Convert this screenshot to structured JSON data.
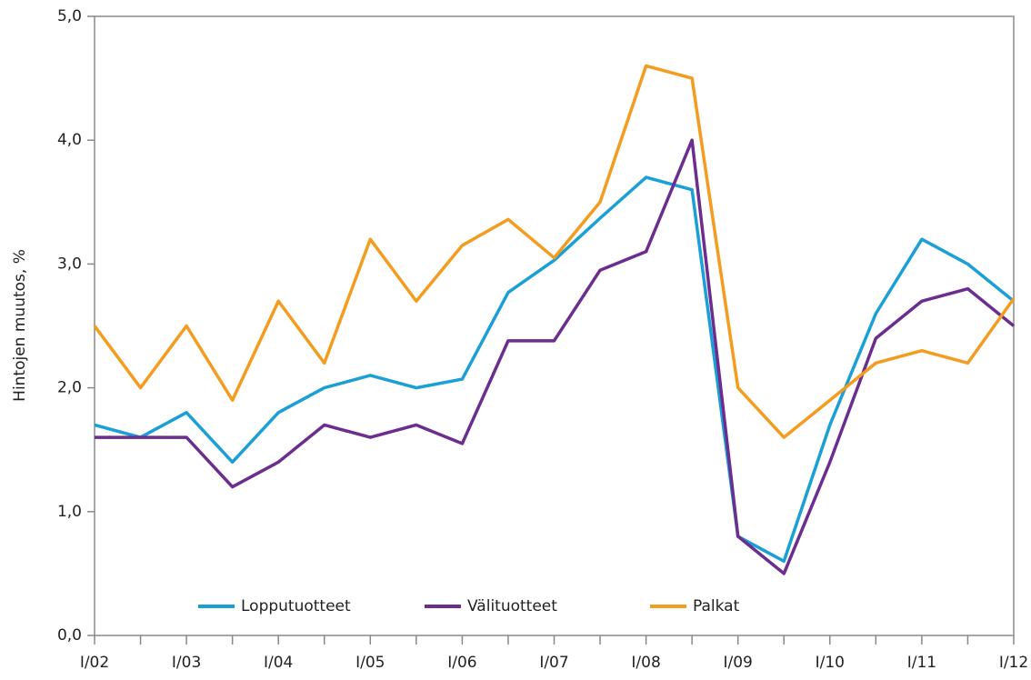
{
  "chart_data": {
    "type": "line",
    "y_label": "Hintojen muutos, %",
    "categories": [
      "I/02",
      null,
      "I/03",
      null,
      "I/04",
      null,
      "I/05",
      null,
      "I/06",
      null,
      "I/07",
      null,
      "I/08",
      null,
      "I/09",
      null,
      "I/10",
      null,
      "I/11",
      null,
      "I/12"
    ],
    "series": [
      {
        "name": "Lopputuotteet",
        "color": "#1a9fd6",
        "values": [
          1.7,
          1.6,
          1.8,
          1.4,
          1.8,
          2.0,
          2.1,
          2.0,
          2.07,
          2.77,
          3.03,
          3.37,
          3.7,
          3.6,
          0.8,
          0.6,
          1.7,
          2.6,
          3.2,
          3.0,
          2.7
        ]
      },
      {
        "name": "Välituotteet",
        "color": "#6b2d8e",
        "values": [
          1.6,
          1.6,
          1.6,
          1.2,
          1.4,
          1.7,
          1.6,
          1.7,
          1.55,
          2.38,
          2.38,
          2.95,
          3.1,
          4.0,
          0.8,
          0.5,
          1.4,
          2.4,
          2.7,
          2.8,
          2.5
        ]
      },
      {
        "name": "Palkat",
        "color": "#f49c1f",
        "values": [
          2.5,
          2.0,
          2.5,
          1.9,
          2.7,
          2.2,
          3.2,
          2.7,
          3.15,
          3.36,
          3.05,
          3.5,
          4.6,
          4.5,
          2.0,
          1.6,
          1.9,
          2.2,
          2.3,
          2.2,
          2.72
        ]
      }
    ],
    "ylim": [
      0,
      5
    ],
    "yticks": [
      {
        "value": 0,
        "label": "0,0"
      },
      {
        "value": 1,
        "label": "1,0"
      },
      {
        "value": 2,
        "label": "2,0"
      },
      {
        "value": 3,
        "label": "3,0"
      },
      {
        "value": 4,
        "label": "4,0"
      },
      {
        "value": 5,
        "label": "5,0"
      }
    ],
    "legend": "bottom"
  }
}
